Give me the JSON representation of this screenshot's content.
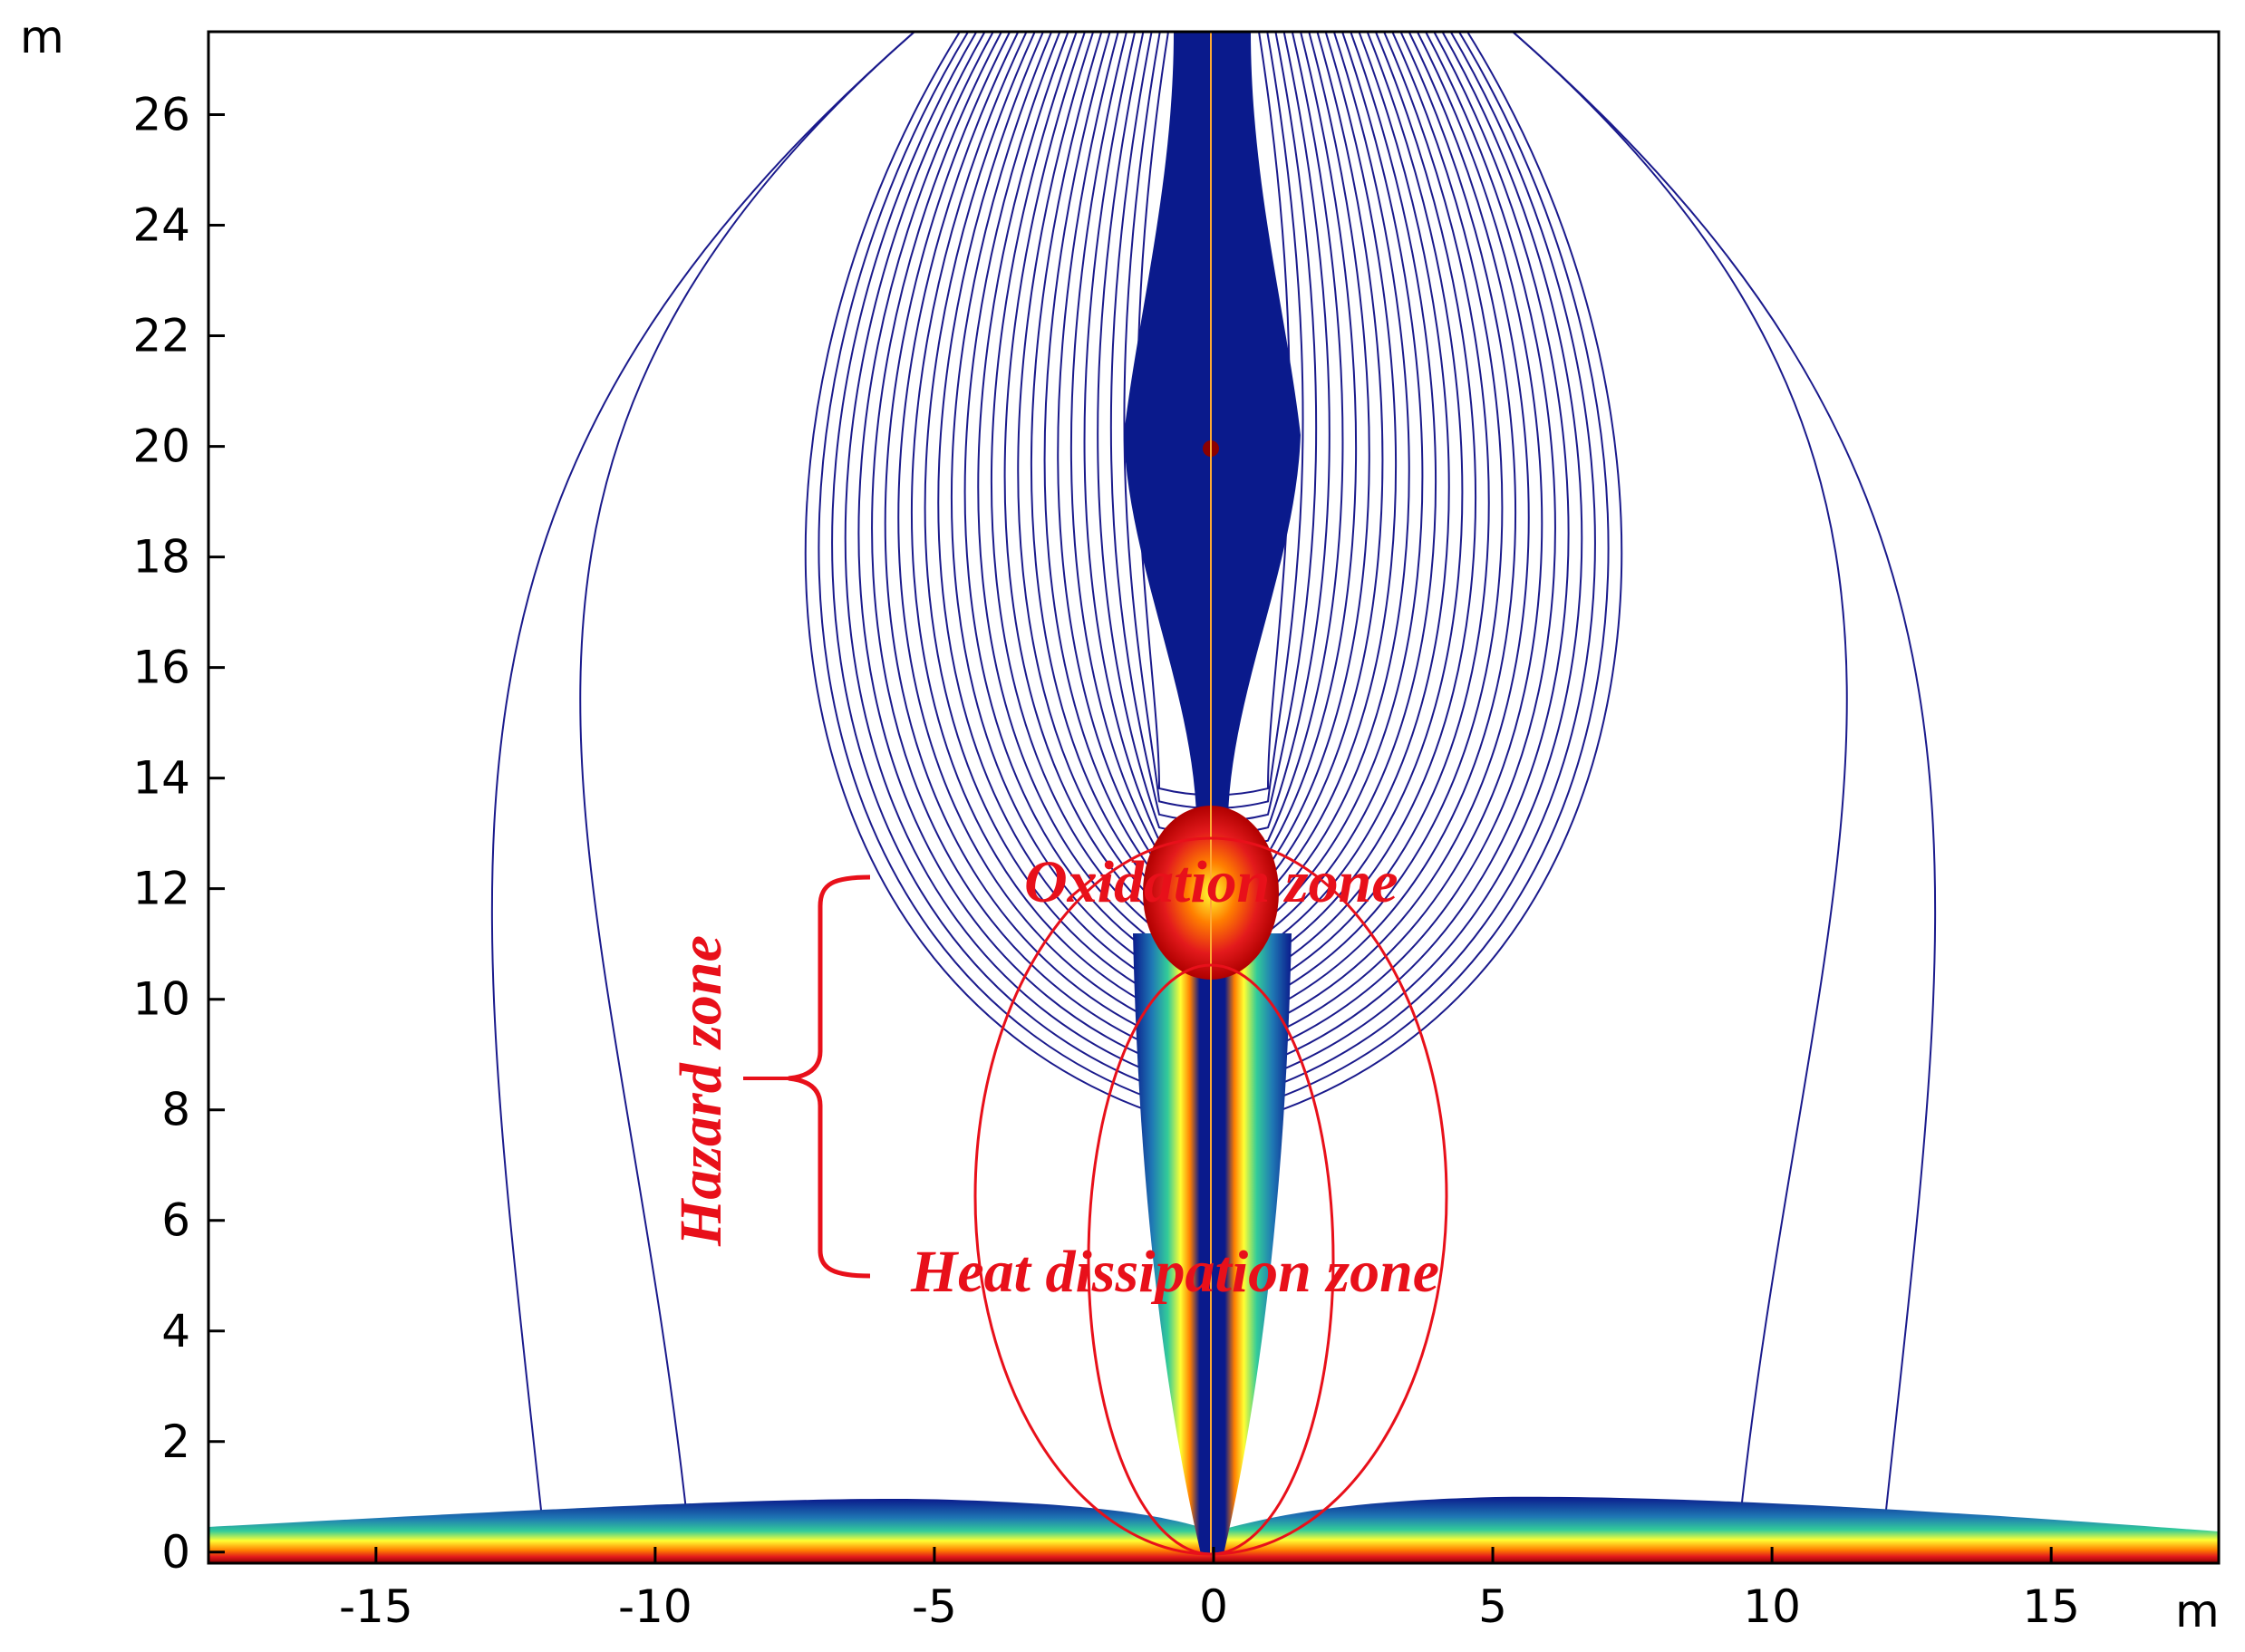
{
  "axes": {
    "x": {
      "unit": "m",
      "range": [
        -18,
        18
      ],
      "ticks": [
        -15,
        -10,
        -5,
        0,
        5,
        10,
        15
      ]
    },
    "y": {
      "unit": "m",
      "range": [
        -0.2,
        27.5
      ],
      "ticks": [
        0,
        2,
        4,
        6,
        8,
        10,
        12,
        14,
        16,
        18,
        20,
        22,
        24,
        26
      ]
    }
  },
  "annotations": {
    "hazard": "Hazard zone",
    "oxidation": "Oxidation zone",
    "heat": "Heat dissipation zone"
  },
  "colors": {
    "contour": "#1a1a8c",
    "annotation": "#e8101a",
    "colormap": [
      "#8b0000",
      "#e31a1c",
      "#ff7f00",
      "#ffff33",
      "#33cc99",
      "#1f78b4",
      "#0a1a8c"
    ]
  }
}
